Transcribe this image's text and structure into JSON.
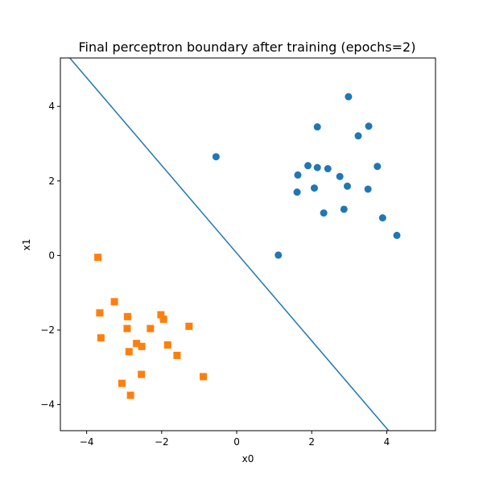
{
  "chart_data": {
    "type": "scatter",
    "title": "Final perceptron boundary after training (epochs=2)",
    "xlabel": "x0",
    "ylabel": "x1",
    "xlim": [
      -4.7,
      5.3
    ],
    "ylim": [
      -4.7,
      5.3
    ],
    "xticks": [
      -4,
      -2,
      0,
      2,
      4
    ],
    "yticks": [
      -4,
      -2,
      0,
      2,
      4
    ],
    "grid": false,
    "legend": "none",
    "series": [
      {
        "marker": "circle",
        "color": "#1f77b4",
        "points": [
          [
            2.98,
            4.26
          ],
          [
            2.15,
            3.45
          ],
          [
            3.52,
            3.47
          ],
          [
            3.24,
            3.21
          ],
          [
            -0.55,
            2.65
          ],
          [
            1.9,
            2.41
          ],
          [
            2.15,
            2.36
          ],
          [
            2.43,
            2.33
          ],
          [
            3.75,
            2.39
          ],
          [
            1.63,
            2.16
          ],
          [
            2.75,
            2.12
          ],
          [
            2.07,
            1.81
          ],
          [
            2.95,
            1.86
          ],
          [
            3.5,
            1.78
          ],
          [
            1.61,
            1.7
          ],
          [
            2.32,
            1.14
          ],
          [
            2.86,
            1.24
          ],
          [
            3.89,
            1.01
          ],
          [
            4.27,
            0.54
          ],
          [
            1.11,
            0.01
          ]
        ]
      },
      {
        "marker": "square",
        "color": "#ff7f0e",
        "points": [
          [
            -3.7,
            -0.05
          ],
          [
            -3.65,
            -1.54
          ],
          [
            -3.26,
            -1.24
          ],
          [
            -2.91,
            -1.64
          ],
          [
            -2.02,
            -1.59
          ],
          [
            -1.95,
            -1.71
          ],
          [
            -2.92,
            -1.96
          ],
          [
            -2.3,
            -1.96
          ],
          [
            -1.27,
            -1.9
          ],
          [
            -3.62,
            -2.21
          ],
          [
            -2.67,
            -2.36
          ],
          [
            -2.53,
            -2.44
          ],
          [
            -1.84,
            -2.4
          ],
          [
            -2.87,
            -2.58
          ],
          [
            -1.59,
            -2.68
          ],
          [
            -2.54,
            -3.19
          ],
          [
            -0.89,
            -3.25
          ],
          [
            -3.06,
            -3.43
          ],
          [
            -2.83,
            -3.75
          ]
        ]
      }
    ],
    "boundary_line": {
      "color": "#1f77b4",
      "points": [
        [
          -4.45,
          5.3
        ],
        [
          4.05,
          -4.7
        ]
      ]
    }
  }
}
